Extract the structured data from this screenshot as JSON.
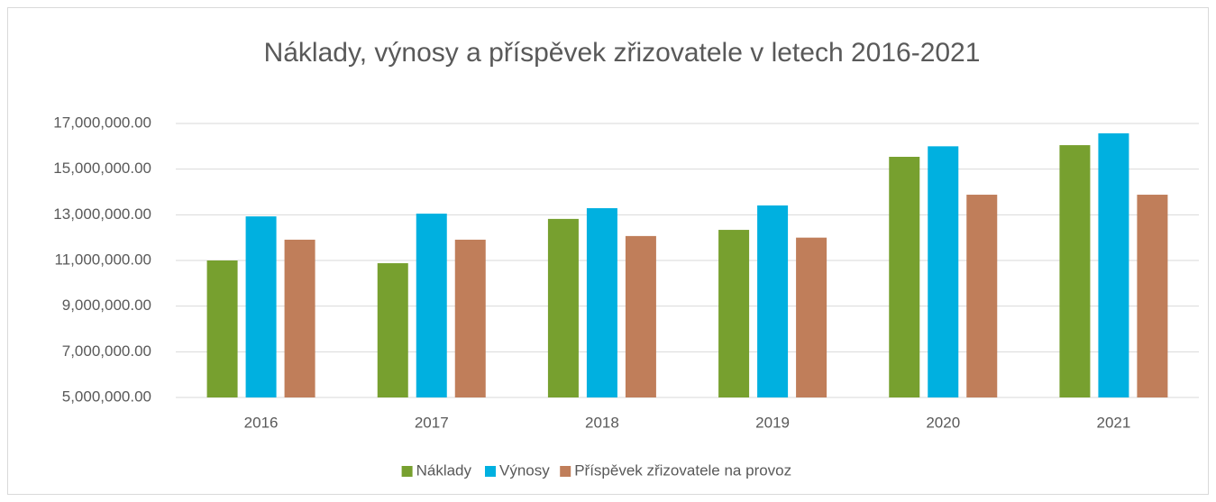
{
  "chart_data": {
    "type": "bar",
    "title": "Náklady, výnosy a příspěvek zřizovatele v letech 2016-2021",
    "categories": [
      "2016",
      "2017",
      "2018",
      "2019",
      "2020",
      "2021"
    ],
    "series": [
      {
        "name": "Náklady",
        "color": "#77a02f",
        "values": [
          11000000,
          10880000,
          12820000,
          12340000,
          15540000,
          16050000
        ]
      },
      {
        "name": "Výnosy",
        "color": "#00b0e0",
        "values": [
          12930000,
          13050000,
          13290000,
          13410000,
          16000000,
          16570000
        ]
      },
      {
        "name": "Příspěvek zřizovatele na provoz",
        "color": "#c07e5a",
        "values": [
          11910000,
          11910000,
          12070000,
          12000000,
          13880000,
          13880000
        ]
      }
    ],
    "ylim": [
      5000000,
      17000000
    ],
    "yticks": [
      {
        "value": 5000000,
        "label": "5,000,000.00"
      },
      {
        "value": 7000000,
        "label": "7,000,000.00"
      },
      {
        "value": 9000000,
        "label": "9,000,000.00"
      },
      {
        "value": 11000000,
        "label": "11,000,000.00"
      },
      {
        "value": 13000000,
        "label": "13,000,000.00"
      },
      {
        "value": 15000000,
        "label": "15,000,000.00"
      },
      {
        "value": 17000000,
        "label": "17,000,000.00"
      }
    ],
    "grid": true,
    "legend": "bottom"
  }
}
